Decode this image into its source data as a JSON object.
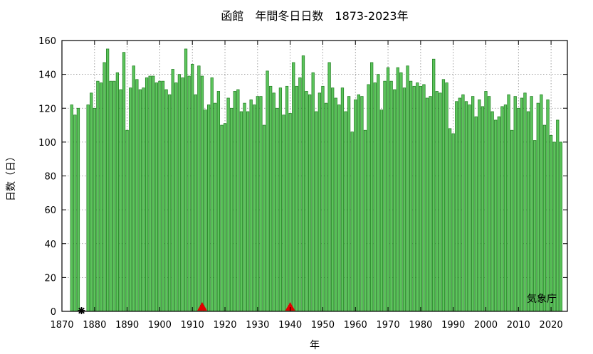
{
  "chart_data": {
    "type": "bar",
    "title": "函館　年間冬日日数　1873-2023年",
    "xlabel": "年",
    "ylabel": "日数（日）",
    "credit": "気象庁",
    "xlim": [
      1870,
      2025
    ],
    "ylim": [
      0,
      160
    ],
    "xticks": [
      1870,
      1880,
      1890,
      1900,
      1910,
      1920,
      1930,
      1940,
      1950,
      1960,
      1970,
      1980,
      1990,
      2000,
      2010,
      2020
    ],
    "yticks": [
      0,
      20,
      40,
      60,
      80,
      100,
      120,
      140,
      160
    ],
    "grid": true,
    "colors": {
      "bar_fill": "#5cc45c",
      "bar_edge": "#1d7a1d",
      "marker_triangle": "#e00000",
      "marker_missing": "#000000"
    },
    "start_year": 1873,
    "values": [
      122,
      116,
      120,
      null,
      null,
      122,
      129,
      120,
      136,
      135,
      147,
      155,
      136,
      136,
      141,
      131,
      153,
      107,
      132,
      145,
      137,
      131,
      132,
      138,
      139,
      139,
      135,
      136,
      136,
      131,
      128,
      143,
      135,
      140,
      138,
      155,
      139,
      146,
      128,
      145,
      139,
      119,
      122,
      138,
      123,
      130,
      110,
      111,
      126,
      120,
      130,
      131,
      118,
      123,
      118,
      125,
      122,
      127,
      127,
      110,
      142,
      133,
      129,
      120,
      132,
      116,
      133,
      117,
      147,
      133,
      138,
      151,
      130,
      128,
      141,
      118,
      129,
      133,
      123,
      147,
      132,
      126,
      122,
      132,
      118,
      127,
      106,
      125,
      128,
      127,
      107,
      134,
      147,
      135,
      140,
      119,
      136,
      144,
      136,
      131,
      144,
      141,
      132,
      145,
      136,
      133,
      135,
      133,
      134,
      126,
      127,
      149,
      130,
      129,
      137,
      135,
      108,
      105,
      124,
      126,
      128,
      124,
      122,
      127,
      115,
      125,
      121,
      130,
      127,
      118,
      113,
      115,
      121,
      122,
      128,
      107,
      127,
      120,
      126,
      129,
      118,
      127,
      101,
      123,
      128,
      110,
      125,
      104,
      100,
      113,
      100
    ],
    "missing_years": [
      1876
    ],
    "marker_years": [
      1913,
      1940
    ]
  }
}
